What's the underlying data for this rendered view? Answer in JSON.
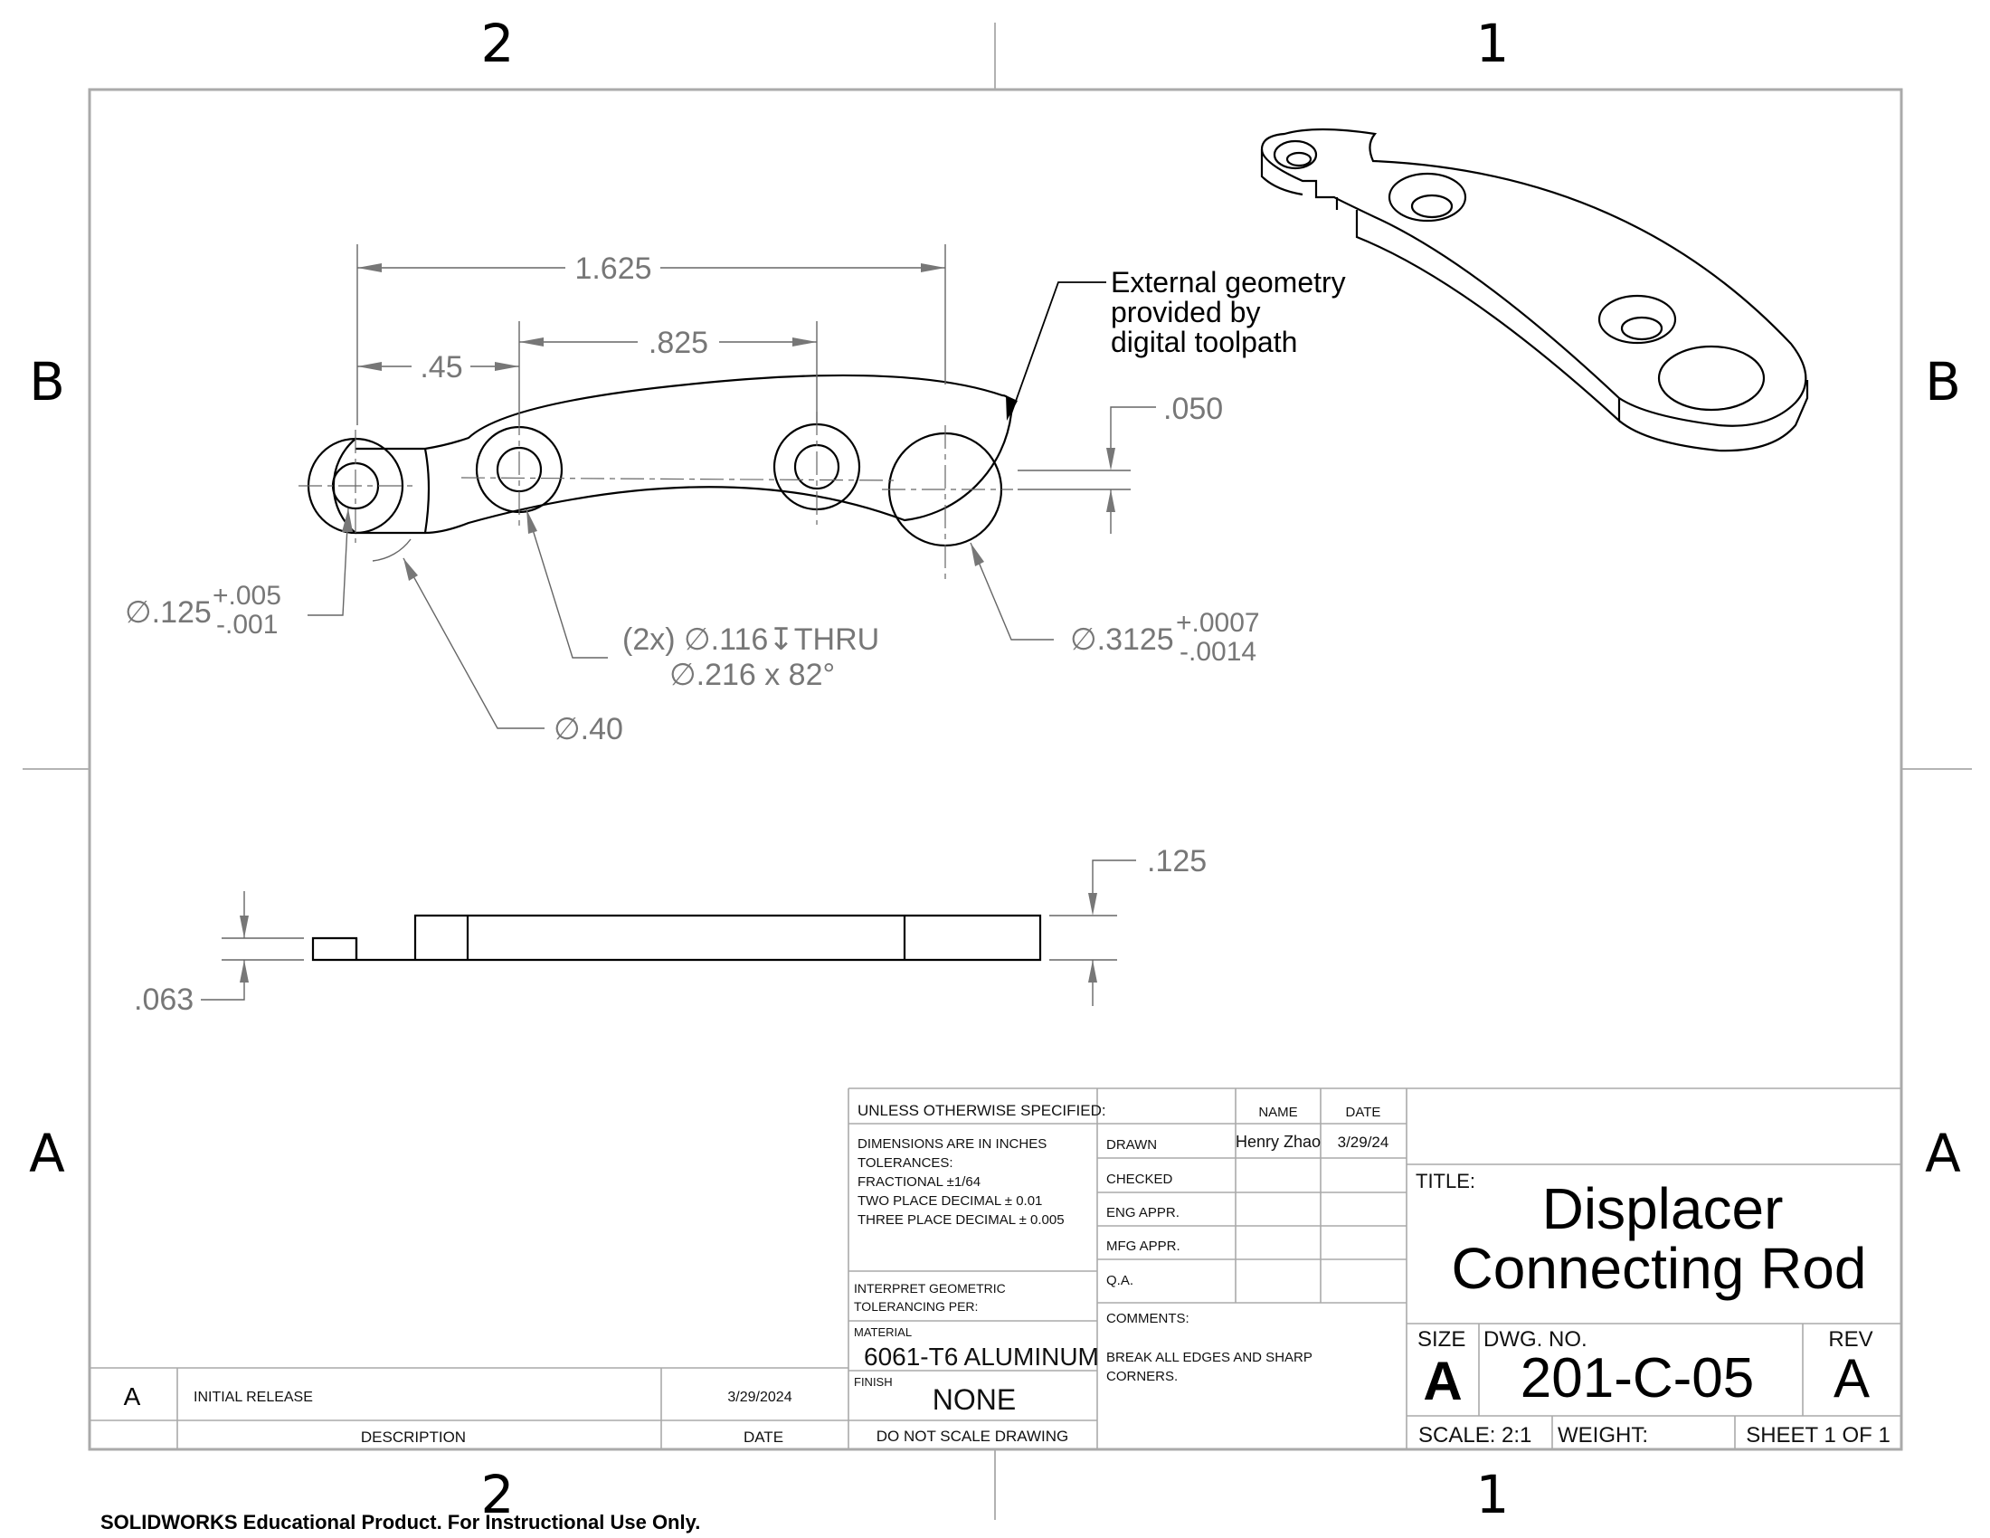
{
  "zones": {
    "top_left": "2",
    "top_right": "1",
    "bottom_left": "2",
    "bottom_right": "1",
    "row_b": "B",
    "row_a": "A"
  },
  "note": {
    "line1": "External geometry",
    "line2": "provided by",
    "line3": "digital toolpath"
  },
  "dims": {
    "d_1625": "1.625",
    "d_45": ".45",
    "d_825": ".825",
    "d_050": ".050",
    "d_125": ".125",
    "d_063": ".063",
    "hole_small": "∅.125",
    "hole_small_tol_plus": "+.005",
    "hole_small_tol_minus": "-.001",
    "hole_csk_line1": "(2x)  ∅.116↧THRU",
    "hole_csk_line2": "∅.216 x 82°",
    "radius_40": "∅.40",
    "hole_large": "∅.3125",
    "hole_large_tol_plus": "+.0007",
    "hole_large_tol_minus": "-.0014"
  },
  "title_block": {
    "unless": "UNLESS OTHERWISE SPECIFIED:",
    "tol_lines": [
      "DIMENSIONS ARE IN INCHES",
      "TOLERANCES:",
      "FRACTIONAL ±1/64",
      "TWO PLACE DECIMAL    ± 0.01",
      "THREE PLACE DECIMAL   ± 0.005"
    ],
    "interpret_line1": "INTERPRET GEOMETRIC",
    "interpret_line2": "TOLERANCING PER:",
    "material_label": "MATERIAL",
    "material": "6061-T6 ALUMINUM",
    "finish_label": "FINISH",
    "finish": "NONE",
    "do_not_scale": "DO NOT SCALE DRAWING",
    "name_hdr": "NAME",
    "date_hdr": "DATE",
    "drawn": "DRAWN",
    "drawn_name": "Henry Zhao",
    "drawn_date": "3/29/24",
    "checked": "CHECKED",
    "eng_appr": "ENG APPR.",
    "mfg_appr": "MFG APPR.",
    "qa": "Q.A.",
    "comments_label": "COMMENTS:",
    "comments_line1": "BREAK ALL EDGES AND SHARP",
    "comments_line2": "CORNERS.",
    "title_label": "TITLE:",
    "title_line1": "Displacer",
    "title_line2": "Connecting Rod",
    "size_label": "SIZE",
    "size": "A",
    "dwg_label": "DWG.  NO.",
    "dwg_no": "201-C-05",
    "rev_label": "REV",
    "rev": "A",
    "scale": "SCALE: 2:1",
    "weight": "WEIGHT:",
    "sheet": "SHEET 1 OF 1"
  },
  "revision": {
    "rev": "A",
    "description": "INITIAL RELEASE",
    "date": "3/29/2024",
    "desc_hdr": "DESCRIPTION",
    "date_hdr": "DATE"
  },
  "watermark": "SOLIDWORKS Educational Product. For Instructional Use Only."
}
